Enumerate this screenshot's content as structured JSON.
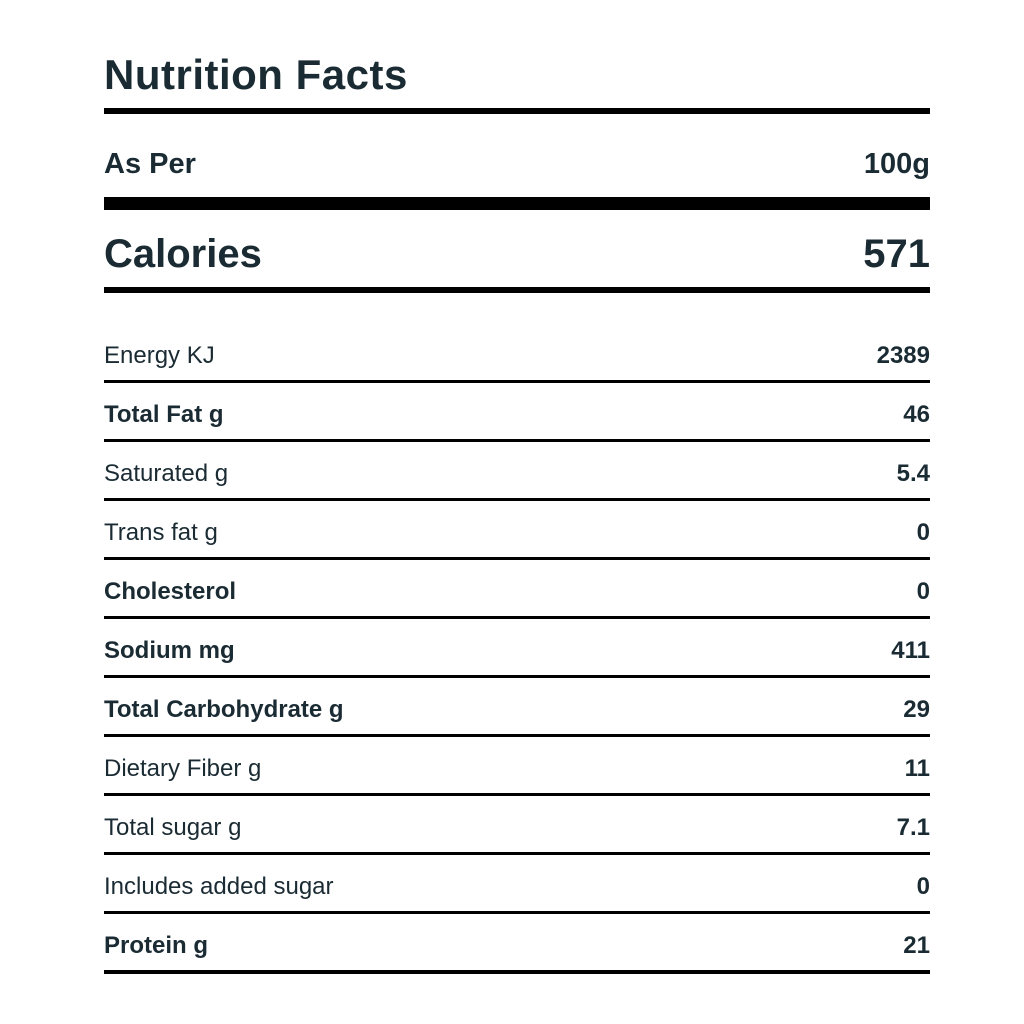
{
  "title": "Nutrition Facts",
  "serving": {
    "label": "As Per",
    "value": "100g"
  },
  "calories": {
    "label": "Calories",
    "value": "571"
  },
  "rows": [
    {
      "label": "Energy KJ",
      "value": "2389",
      "bold": false
    },
    {
      "label": "Total Fat g",
      "value": "46",
      "bold": true
    },
    {
      "label": "Saturated g",
      "value": "5.4",
      "bold": false
    },
    {
      "label": "Trans fat g",
      "value": "0",
      "bold": false
    },
    {
      "label": "Cholesterol",
      "value": "0",
      "bold": true
    },
    {
      "label": "Sodium mg",
      "value": "411",
      "bold": true
    },
    {
      "label": "Total Carbohydrate g",
      "value": "29",
      "bold": true
    },
    {
      "label": "Dietary Fiber g",
      "value": "11",
      "bold": false
    },
    {
      "label": "Total sugar g",
      "value": "7.1",
      "bold": false
    },
    {
      "label": "Includes added sugar",
      "value": "0",
      "bold": false
    },
    {
      "label": "Protein g",
      "value": "21",
      "bold": true
    }
  ],
  "colors": {
    "text": "#1a2b33",
    "rule": "#000000",
    "background": "#ffffff"
  }
}
